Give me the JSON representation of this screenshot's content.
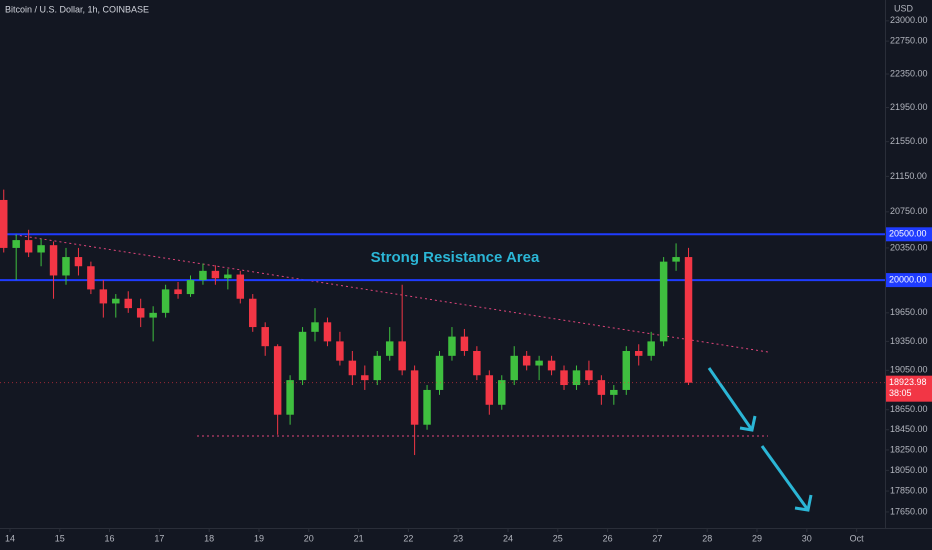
{
  "chart_data": {
    "type": "candlestick",
    "title": "Bitcoin / U.S. Dollar, 1h, COINBASE",
    "currency": "USD",
    "annotation": "Strong Resistance Area",
    "x": [
      13.875,
      14.125,
      14.375,
      14.625,
      14.875,
      15.125,
      15.375,
      15.625,
      15.875,
      16.125,
      16.375,
      16.625,
      16.875,
      17.125,
      17.375,
      17.625,
      17.875,
      18.125,
      18.375,
      18.625,
      18.875,
      19.125,
      19.375,
      19.625,
      19.875,
      20.125,
      20.375,
      20.625,
      20.875,
      21.125,
      21.375,
      21.625,
      21.875,
      22.125,
      22.375,
      22.625,
      22.875,
      23.125,
      23.375,
      23.625,
      23.875,
      24.125,
      24.375,
      24.625,
      24.875,
      25.125,
      25.375,
      25.625,
      25.875,
      26.125,
      26.375,
      26.625,
      26.875,
      27.125,
      27.375,
      27.625
    ],
    "open": [
      20883,
      20350,
      20436,
      20300,
      20380,
      20050,
      20250,
      20150,
      19900,
      19750,
      19800,
      19700,
      19600,
      19650,
      19900,
      19850,
      20000,
      20100,
      20020,
      20060,
      19800,
      19500,
      19300,
      18600,
      18950,
      19450,
      19550,
      19350,
      19150,
      19000,
      18950,
      19200,
      19350,
      19050,
      18500,
      18850,
      19200,
      19400,
      19250,
      19000,
      18700,
      18950,
      19200,
      19100,
      19150,
      19050,
      18900,
      19050,
      18950,
      18800,
      18850,
      19250,
      19200,
      19350,
      20200,
      20250
    ],
    "high": [
      21000,
      20500,
      20550,
      20450,
      20420,
      20350,
      20350,
      20200,
      20000,
      19850,
      19880,
      19800,
      19720,
      19950,
      19980,
      20050,
      20180,
      20160,
      20120,
      20100,
      19850,
      19550,
      19320,
      19000,
      19500,
      19700,
      19600,
      19450,
      19250,
      19100,
      19250,
      19500,
      19950,
      19100,
      18900,
      19250,
      19500,
      19480,
      19300,
      19050,
      19000,
      19300,
      19250,
      19200,
      19200,
      19100,
      19100,
      19150,
      19000,
      18900,
      19300,
      19320,
      19450,
      20250,
      20400,
      20350
    ],
    "low": [
      20300,
      20000,
      20250,
      20150,
      19800,
      19950,
      20050,
      19850,
      19600,
      19600,
      19650,
      19500,
      19350,
      19600,
      19800,
      19820,
      19950,
      19950,
      19900,
      19750,
      19450,
      19200,
      18400,
      18500,
      18900,
      19350,
      19300,
      19100,
      18900,
      18850,
      18900,
      19150,
      19000,
      18200,
      18450,
      18800,
      19150,
      19200,
      18950,
      18600,
      18650,
      18900,
      19050,
      18950,
      19000,
      18850,
      18850,
      18900,
      18700,
      18700,
      18800,
      19100,
      19150,
      19300,
      20100,
      18900
    ],
    "close": [
      20350,
      20436,
      20300,
      20380,
      20050,
      20250,
      20150,
      19900,
      19750,
      19800,
      19700,
      19600,
      19650,
      19900,
      19850,
      20000,
      20100,
      20020,
      20060,
      19800,
      19500,
      19300,
      18600,
      18950,
      19450,
      19550,
      19350,
      19150,
      19000,
      18950,
      19200,
      19350,
      19050,
      18500,
      18850,
      19200,
      19400,
      19250,
      19000,
      18700,
      18950,
      19200,
      19100,
      19150,
      19050,
      18900,
      19050,
      18950,
      18800,
      18850,
      19250,
      19200,
      19350,
      20200,
      20250,
      18924
    ],
    "up_color": "#3fbf3f",
    "down_color": "#f23645",
    "xlim": [
      13.8,
      31.57
    ],
    "xticks": [
      14,
      15,
      16,
      17,
      18,
      19,
      20,
      21,
      22,
      23,
      24,
      25,
      26,
      27,
      28,
      29,
      30,
      {
        "value": 31,
        "label": "Oct"
      }
    ],
    "ylim": [
      17498,
      23260
    ],
    "log_scale": true,
    "yticks": [
      {
        "value": 23000,
        "label": "23000.00"
      },
      {
        "value": 22750,
        "label": "22750.00"
      },
      {
        "value": 22350,
        "label": "22350.00"
      },
      {
        "value": 21950,
        "label": "21950.00"
      },
      {
        "value": 21550,
        "label": "21550.00"
      },
      {
        "value": 21150,
        "label": "21150.00"
      },
      {
        "value": 20750,
        "label": "20750.00"
      },
      {
        "value": 20350,
        "label": "20350.00"
      },
      {
        "value": 19650,
        "label": "19650.00"
      },
      {
        "value": 19350,
        "label": "19350.00"
      },
      {
        "value": 19050,
        "label": "19050.00"
      },
      {
        "value": 18650,
        "label": "18650.00"
      },
      {
        "value": 18450,
        "label": "18450.00"
      },
      {
        "value": 18250,
        "label": "18250.00"
      },
      {
        "value": 18050,
        "label": "18050.00"
      },
      {
        "value": 17850,
        "label": "17850.00"
      },
      {
        "value": 17650,
        "label": "17650.00"
      }
    ],
    "levels": [
      {
        "value": 20500,
        "label": "20500.00"
      },
      {
        "value": 20000,
        "label": "20000.00"
      }
    ],
    "level_color": "#1f3cff",
    "last_price": {
      "value": 18923.98,
      "label": "18923.98"
    },
    "countdown": "38:05"
  }
}
